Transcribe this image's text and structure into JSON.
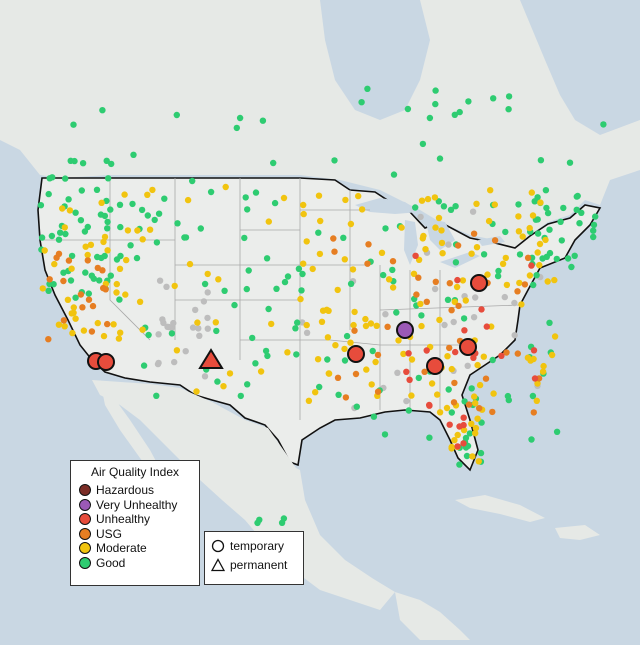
{
  "legend": {
    "title": "Air Quality Index",
    "categories": [
      {
        "label": "Hazardous",
        "color": "#7b2d26"
      },
      {
        "label": "Very Unhealthy",
        "color": "#9b59b6"
      },
      {
        "label": "Unhealthy",
        "color": "#e74c3c"
      },
      {
        "label": "USG",
        "color": "#e67e22"
      },
      {
        "label": "Moderate",
        "color": "#f1c40f"
      },
      {
        "label": "Good",
        "color": "#2ecc71"
      }
    ]
  },
  "shape_legend": {
    "items": [
      {
        "label": "temporary",
        "icon": "circle-icon"
      },
      {
        "label": "permanent",
        "icon": "triangle-icon"
      }
    ]
  },
  "colors": {
    "water": "#c9d7e3",
    "land": "#e9ece9",
    "no_data": "#bdbdbd",
    "border": "#111111",
    "state_line": "#a9a9a9"
  }
}
